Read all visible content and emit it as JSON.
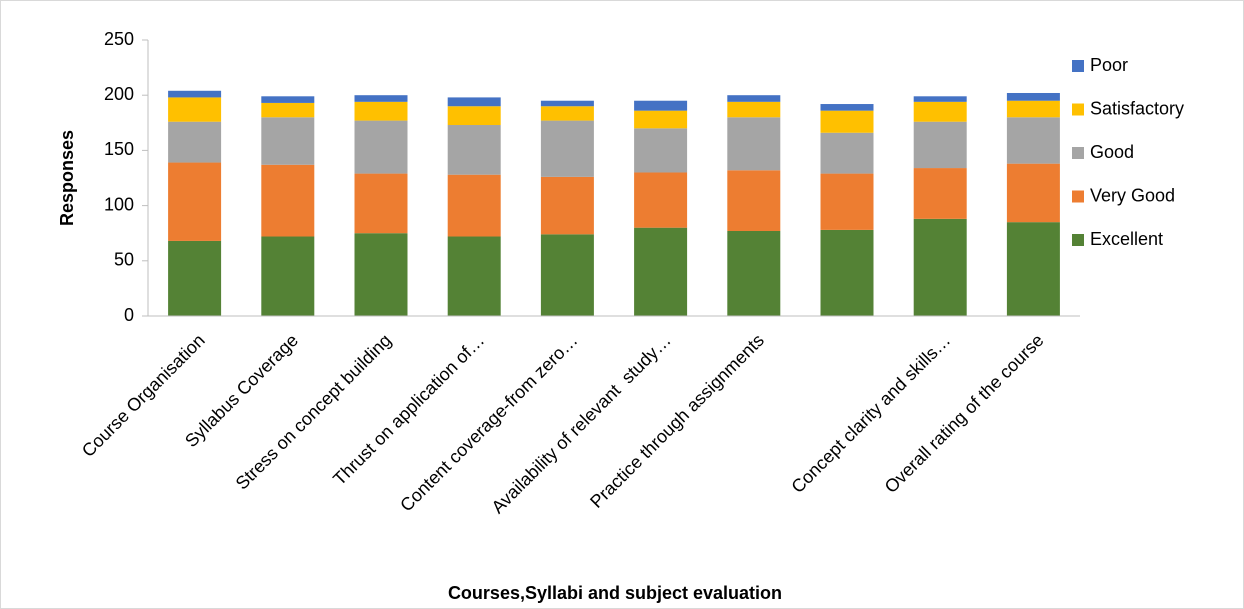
{
  "chart_data": {
    "type": "stacked_bar",
    "xlabel": "Courses,Syllabi and subject evaluation",
    "ylabel": "Responses",
    "categories": [
      "Course Organisation",
      "Syllabus Coverage",
      "Stress on concept building",
      "Thrust on application of…",
      "Content coverage-from zero…",
      "Availability of relevant  study…",
      "Practice through assignments",
      null,
      "Concept clarity and skills…",
      "Overall rating of the course"
    ],
    "series": [
      {
        "name": "Excellent",
        "color": "#548235",
        "values": [
          68,
          72,
          75,
          72,
          74,
          80,
          77,
          78,
          88,
          85
        ]
      },
      {
        "name": "Very Good",
        "color": "#ed7d31",
        "values": [
          71,
          65,
          54,
          56,
          52,
          50,
          55,
          51,
          46,
          53
        ]
      },
      {
        "name": "Good",
        "color": "#a5a5a5",
        "values": [
          37,
          43,
          48,
          45,
          51,
          40,
          48,
          37,
          42,
          42
        ]
      },
      {
        "name": "Satisfactory",
        "color": "#ffc000",
        "values": [
          22,
          13,
          17,
          17,
          13,
          16,
          14,
          20,
          18,
          15
        ]
      },
      {
        "name": "Poor",
        "color": "#4472c4",
        "values": [
          6,
          6,
          6,
          8,
          5,
          9,
          6,
          6,
          5,
          7
        ]
      }
    ],
    "ylim": [
      0,
      250
    ],
    "yticks": [
      0,
      50,
      100,
      150,
      200,
      250
    ],
    "grid": false,
    "legend": "right"
  }
}
